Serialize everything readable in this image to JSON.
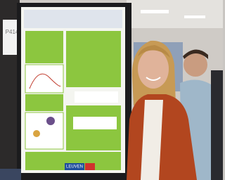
{
  "sign": {
    "label": "P414"
  },
  "poster": {
    "logo": "LEUVEN"
  }
}
